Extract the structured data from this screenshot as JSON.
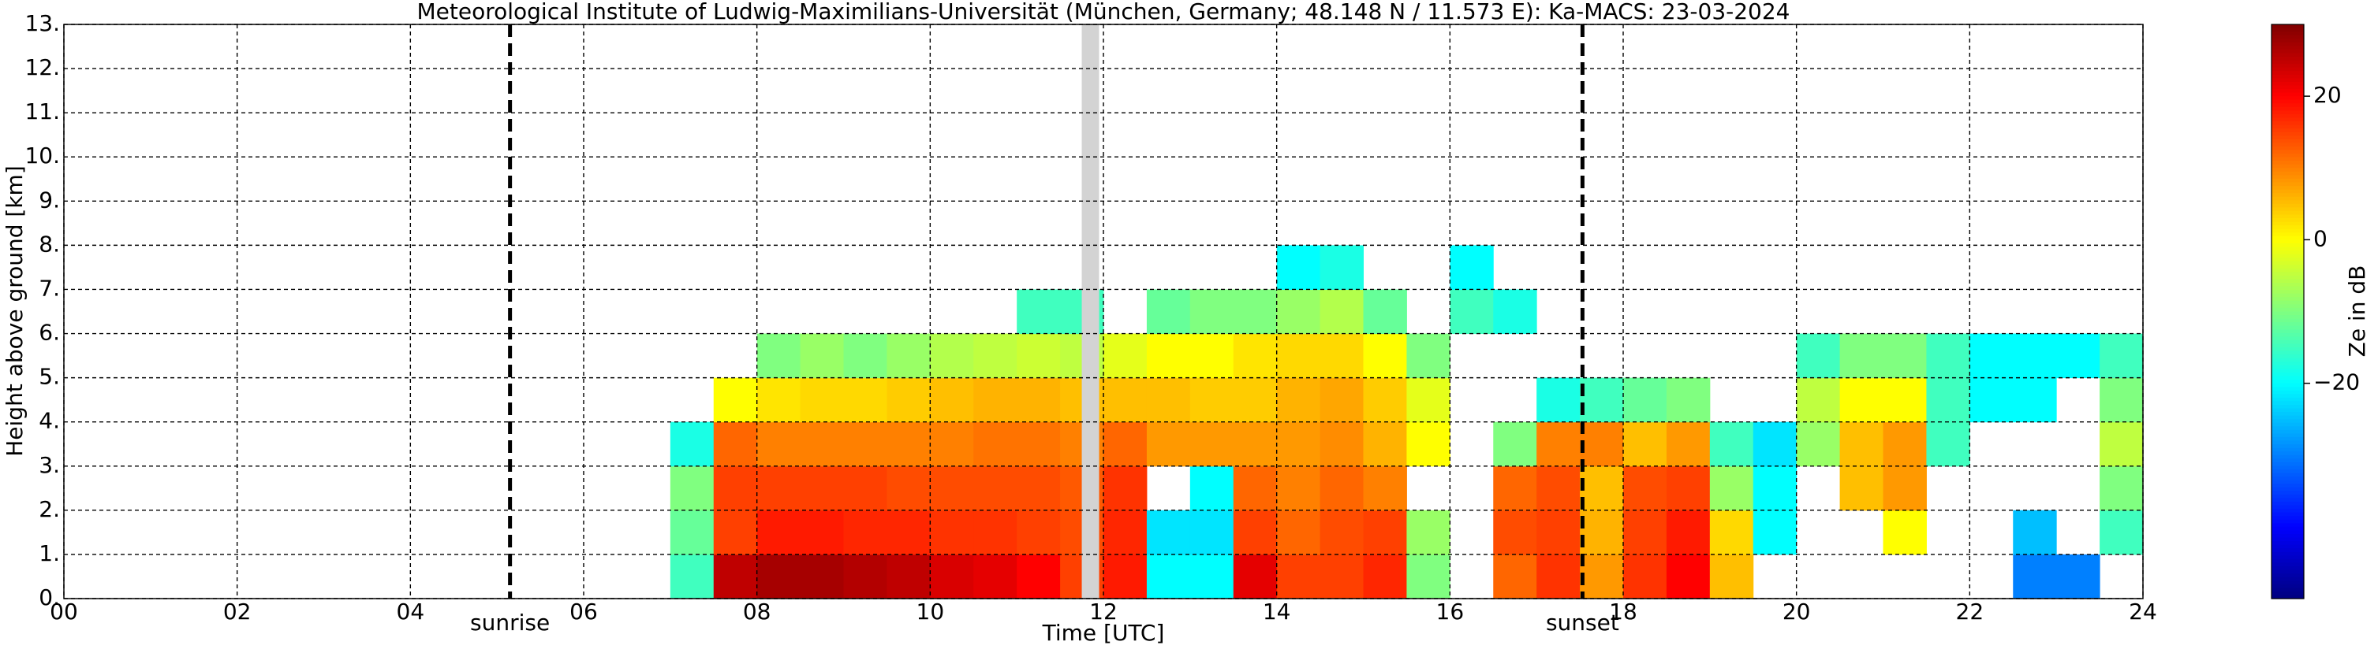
{
  "chart_data": {
    "type": "heatmap",
    "title": "Meteorological Institute of Ludwig-Maximilians-Universität (München, Germany; 48.148 N / 11.573 E):    Ka-MACS: 23-03-2024",
    "x_label": "Time [UTC]",
    "y_label": "Height above ground [km]",
    "colorbar_label": "Ze in dB",
    "colormap": "jet",
    "grid": true,
    "xlim": [
      0,
      24
    ],
    "ylim": [
      0,
      13
    ],
    "zlim": [
      -50,
      30
    ],
    "xticks": [
      {
        "value": 0,
        "label": "00"
      },
      {
        "value": 2,
        "label": "02"
      },
      {
        "value": 4,
        "label": "04"
      },
      {
        "value": 6,
        "label": "06"
      },
      {
        "value": 8,
        "label": "08"
      },
      {
        "value": 10,
        "label": "10"
      },
      {
        "value": 12,
        "label": "12"
      },
      {
        "value": 14,
        "label": "14"
      },
      {
        "value": 16,
        "label": "16"
      },
      {
        "value": 18,
        "label": "18"
      },
      {
        "value": 20,
        "label": "20"
      },
      {
        "value": 22,
        "label": "22"
      },
      {
        "value": 24,
        "label": "24"
      }
    ],
    "yticks": [
      {
        "value": 0,
        "label": "0."
      },
      {
        "value": 1,
        "label": "1."
      },
      {
        "value": 2,
        "label": "2."
      },
      {
        "value": 3,
        "label": "3."
      },
      {
        "value": 4,
        "label": "4."
      },
      {
        "value": 5,
        "label": "5."
      },
      {
        "value": 6,
        "label": "6."
      },
      {
        "value": 7,
        "label": "7."
      },
      {
        "value": 8,
        "label": "8."
      },
      {
        "value": 9,
        "label": "9."
      },
      {
        "value": 10,
        "label": "10."
      },
      {
        "value": 11,
        "label": "11."
      },
      {
        "value": 12,
        "label": "12."
      },
      {
        "value": 13,
        "label": "13."
      }
    ],
    "zticks": [
      {
        "value": 20,
        "label": "20"
      },
      0,
      {
        "value": -20,
        "label": "−20"
      }
    ],
    "x_edges": [
      0,
      0.5,
      1,
      1.5,
      2,
      2.5,
      3,
      3.5,
      4,
      4.5,
      5,
      5.5,
      6,
      6.5,
      7,
      7.5,
      8,
      8.5,
      9,
      9.5,
      10,
      10.5,
      11,
      11.5,
      12,
      12.5,
      13,
      13.5,
      14,
      14.5,
      15,
      15.5,
      16,
      16.5,
      17,
      17.5,
      18,
      18.5,
      19,
      19.5,
      20,
      20.5,
      21,
      21.5,
      22,
      22.5,
      23,
      23.5,
      24
    ],
    "y_edges": [
      0,
      1,
      2,
      3,
      4,
      5,
      6,
      7,
      8,
      9,
      10,
      11,
      12,
      13
    ],
    "z": [
      [
        null,
        null,
        null,
        null,
        null,
        null,
        null,
        null,
        null,
        null,
        null,
        null,
        null
      ],
      [
        null,
        null,
        null,
        null,
        null,
        null,
        null,
        null,
        null,
        null,
        null,
        null,
        null
      ],
      [
        null,
        null,
        null,
        null,
        null,
        null,
        null,
        null,
        null,
        null,
        null,
        null,
        null
      ],
      [
        null,
        null,
        null,
        null,
        null,
        null,
        null,
        null,
        null,
        null,
        null,
        null,
        null
      ],
      [
        null,
        null,
        null,
        null,
        null,
        null,
        null,
        null,
        null,
        null,
        null,
        null,
        null
      ],
      [
        null,
        null,
        null,
        null,
        null,
        null,
        null,
        null,
        null,
        null,
        null,
        null,
        null
      ],
      [
        null,
        null,
        null,
        null,
        null,
        null,
        null,
        null,
        null,
        null,
        null,
        null,
        null
      ],
      [
        null,
        null,
        null,
        null,
        null,
        null,
        null,
        null,
        null,
        null,
        null,
        null,
        null
      ],
      [
        null,
        null,
        null,
        null,
        null,
        null,
        null,
        null,
        null,
        null,
        null,
        null,
        null
      ],
      [
        null,
        null,
        null,
        null,
        null,
        null,
        null,
        null,
        null,
        null,
        null,
        null,
        null
      ],
      [
        null,
        null,
        null,
        null,
        null,
        null,
        null,
        null,
        null,
        null,
        null,
        null,
        null
      ],
      [
        null,
        null,
        null,
        null,
        null,
        null,
        null,
        null,
        null,
        null,
        null,
        null,
        null
      ],
      [
        null,
        null,
        null,
        null,
        null,
        null,
        null,
        null,
        null,
        null,
        null,
        null,
        null
      ],
      [
        null,
        null,
        null,
        null,
        null,
        null,
        null,
        null,
        null,
        null,
        null,
        null,
        null
      ],
      [
        -15,
        -12,
        -10,
        -18,
        null,
        null,
        null,
        null,
        null,
        null,
        null,
        null,
        null
      ],
      [
        25,
        15,
        15,
        12,
        0,
        null,
        null,
        null,
        null,
        null,
        null,
        null,
        null
      ],
      [
        27,
        18,
        15,
        10,
        2,
        -10,
        null,
        null,
        null,
        null,
        null,
        null,
        null
      ],
      [
        27,
        18,
        15,
        10,
        3,
        -8,
        null,
        null,
        null,
        null,
        null,
        null,
        null
      ],
      [
        26,
        17,
        15,
        10,
        3,
        -10,
        null,
        null,
        null,
        null,
        null,
        null,
        null
      ],
      [
        25,
        17,
        14,
        10,
        4,
        -8,
        null,
        null,
        null,
        null,
        null,
        null,
        null
      ],
      [
        23,
        16,
        14,
        10,
        5,
        -6,
        null,
        null,
        null,
        null,
        null,
        null,
        null
      ],
      [
        22,
        16,
        14,
        11,
        6,
        -5,
        null,
        null,
        null,
        null,
        null,
        null,
        null
      ],
      [
        20,
        15,
        14,
        11,
        6,
        -4,
        -15,
        null,
        null,
        null,
        null,
        null,
        null
      ],
      [
        15,
        14,
        13,
        10,
        5,
        -5,
        -15,
        null,
        null,
        null,
        null,
        null,
        null
      ],
      [
        18,
        17,
        16,
        12,
        5,
        -2,
        null,
        null,
        null,
        null,
        null,
        null,
        null
      ],
      [
        -20,
        -22,
        null,
        8,
        5,
        0,
        -12,
        null,
        null,
        null,
        null,
        null,
        null
      ],
      [
        -20,
        -22,
        -20,
        8,
        4,
        0,
        -10,
        null,
        null,
        null,
        null,
        null,
        null
      ],
      [
        22,
        15,
        12,
        8,
        4,
        2,
        -10,
        null,
        null,
        null,
        null,
        null,
        null
      ],
      [
        15,
        12,
        10,
        8,
        6,
        3,
        -8,
        -20,
        null,
        null,
        null,
        null,
        null
      ],
      [
        15,
        14,
        12,
        9,
        7,
        3,
        -6,
        -18,
        null,
        null,
        null,
        null,
        null
      ],
      [
        17,
        15,
        10,
        6,
        4,
        0,
        -12,
        null,
        null,
        null,
        null,
        null,
        null
      ],
      [
        -10,
        -8,
        null,
        0,
        -2,
        -10,
        null,
        null,
        null,
        null,
        null,
        null,
        null
      ],
      [
        null,
        null,
        null,
        null,
        null,
        null,
        -15,
        -20,
        null,
        null,
        null,
        null,
        null
      ],
      [
        12,
        14,
        12,
        -10,
        null,
        null,
        -18,
        null,
        null,
        null,
        null,
        null,
        null
      ],
      [
        16,
        15,
        14,
        10,
        -18,
        null,
        null,
        null,
        null,
        null,
        null,
        null,
        null
      ],
      [
        8,
        6,
        5,
        10,
        -15,
        null,
        null,
        null,
        null,
        null,
        null,
        null,
        null
      ],
      [
        16,
        15,
        14,
        5,
        -12,
        null,
        null,
        null,
        null,
        null,
        null,
        null,
        null
      ],
      [
        20,
        18,
        15,
        8,
        -10,
        null,
        null,
        null,
        null,
        null,
        null,
        null,
        null
      ],
      [
        5,
        3,
        -8,
        -15,
        null,
        null,
        null,
        null,
        null,
        null,
        null,
        null,
        null
      ],
      [
        null,
        -20,
        -20,
        -22,
        null,
        null,
        null,
        null,
        null,
        null,
        null,
        null,
        null
      ],
      [
        null,
        null,
        null,
        -8,
        -5,
        -15,
        null,
        null,
        null,
        null,
        null,
        null,
        null
      ],
      [
        null,
        null,
        5,
        5,
        0,
        -10,
        null,
        null,
        null,
        null,
        null,
        null,
        null
      ],
      [
        null,
        0,
        8,
        8,
        0,
        -10,
        null,
        null,
        null,
        null,
        null,
        null,
        null
      ],
      [
        null,
        null,
        null,
        -15,
        -15,
        -15,
        null,
        null,
        null,
        null,
        null,
        null,
        null
      ],
      [
        null,
        null,
        null,
        null,
        -20,
        -20,
        null,
        null,
        null,
        null,
        null,
        null,
        null
      ],
      [
        -30,
        -25,
        null,
        null,
        -20,
        -20,
        null,
        null,
        null,
        null,
        null,
        null,
        null
      ],
      [
        -30,
        null,
        null,
        null,
        null,
        -20,
        null,
        null,
        null,
        null,
        null,
        null,
        null
      ],
      [
        null,
        -15,
        -10,
        -5,
        -10,
        -15,
        null,
        null,
        null,
        null,
        null,
        null,
        null
      ]
    ],
    "missing_data": [
      11.75,
      11.95
    ],
    "annotations": [
      {
        "text": "sunrise",
        "x": 5.15
      },
      {
        "text": "sunset",
        "x": 17.53
      }
    ]
  }
}
